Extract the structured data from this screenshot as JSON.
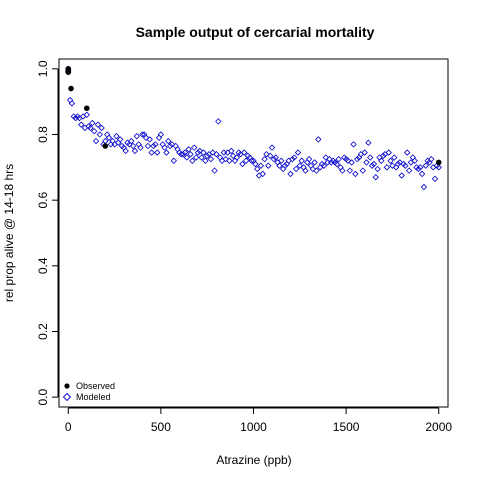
{
  "chart_data": {
    "type": "scatter",
    "title": "Sample output of cercarial mortality",
    "xlabel": "Atrazine (ppb)",
    "ylabel": "rel prop alive @ 14-18 hrs",
    "xlim": [
      -50,
      2050
    ],
    "ylim": [
      -0.03,
      1.03
    ],
    "xticks": [
      0,
      500,
      1000,
      1500,
      2000
    ],
    "xtick_labels": [
      "0",
      "500",
      "1000",
      "1500",
      "2000"
    ],
    "yticks": [
      0.0,
      0.2,
      0.4,
      0.6,
      0.8,
      1.0
    ],
    "ytick_labels": [
      "0.0",
      "0.2",
      "0.4",
      "0.6",
      "0.8",
      "1.0"
    ],
    "grid": false,
    "legend_position": "bottom-left",
    "series": [
      {
        "name": "Observed",
        "marker": "filled-circle",
        "color": "#000000",
        "points": [
          [
            0,
            1.0
          ],
          [
            0,
            0.995
          ],
          [
            0,
            0.99
          ],
          [
            15,
            0.94
          ],
          [
            100,
            0.88
          ],
          [
            200,
            0.765
          ],
          [
            2000,
            0.715
          ]
        ]
      },
      {
        "name": "Modeled",
        "marker": "open-diamond",
        "color": "#0000cc",
        "points": [
          [
            0,
            1.0
          ],
          [
            0,
            0.993
          ],
          [
            0,
            0.99
          ],
          [
            10,
            0.905
          ],
          [
            20,
            0.895
          ],
          [
            30,
            0.855
          ],
          [
            40,
            0.85
          ],
          [
            50,
            0.855
          ],
          [
            60,
            0.85
          ],
          [
            70,
            0.83
          ],
          [
            80,
            0.855
          ],
          [
            90,
            0.82
          ],
          [
            100,
            0.86
          ],
          [
            110,
            0.825
          ],
          [
            120,
            0.82
          ],
          [
            130,
            0.835
          ],
          [
            140,
            0.81
          ],
          [
            150,
            0.78
          ],
          [
            160,
            0.83
          ],
          [
            170,
            0.8
          ],
          [
            180,
            0.82
          ],
          [
            190,
            0.77
          ],
          [
            200,
            0.78
          ],
          [
            210,
            0.8
          ],
          [
            220,
            0.79
          ],
          [
            230,
            0.77
          ],
          [
            240,
            0.78
          ],
          [
            250,
            0.77
          ],
          [
            260,
            0.795
          ],
          [
            270,
            0.775
          ],
          [
            280,
            0.785
          ],
          [
            290,
            0.765
          ],
          [
            300,
            0.76
          ],
          [
            310,
            0.75
          ],
          [
            320,
            0.775
          ],
          [
            330,
            0.77
          ],
          [
            340,
            0.78
          ],
          [
            350,
            0.765
          ],
          [
            360,
            0.75
          ],
          [
            370,
            0.795
          ],
          [
            380,
            0.77
          ],
          [
            390,
            0.76
          ],
          [
            400,
            0.8
          ],
          [
            410,
            0.8
          ],
          [
            420,
            0.79
          ],
          [
            430,
            0.765
          ],
          [
            440,
            0.785
          ],
          [
            450,
            0.745
          ],
          [
            460,
            0.765
          ],
          [
            470,
            0.77
          ],
          [
            480,
            0.745
          ],
          [
            490,
            0.79
          ],
          [
            500,
            0.8
          ],
          [
            510,
            0.77
          ],
          [
            520,
            0.76
          ],
          [
            530,
            0.745
          ],
          [
            540,
            0.78
          ],
          [
            550,
            0.765
          ],
          [
            560,
            0.77
          ],
          [
            570,
            0.72
          ],
          [
            580,
            0.765
          ],
          [
            590,
            0.755
          ],
          [
            600,
            0.745
          ],
          [
            610,
            0.74
          ],
          [
            620,
            0.74
          ],
          [
            630,
            0.745
          ],
          [
            640,
            0.73
          ],
          [
            650,
            0.755
          ],
          [
            660,
            0.74
          ],
          [
            670,
            0.72
          ],
          [
            680,
            0.76
          ],
          [
            690,
            0.73
          ],
          [
            700,
            0.745
          ],
          [
            710,
            0.75
          ],
          [
            720,
            0.73
          ],
          [
            730,
            0.745
          ],
          [
            740,
            0.72
          ],
          [
            750,
            0.735
          ],
          [
            760,
            0.74
          ],
          [
            770,
            0.725
          ],
          [
            780,
            0.745
          ],
          [
            790,
            0.69
          ],
          [
            800,
            0.74
          ],
          [
            810,
            0.84
          ],
          [
            820,
            0.73
          ],
          [
            830,
            0.72
          ],
          [
            840,
            0.745
          ],
          [
            850,
            0.725
          ],
          [
            860,
            0.745
          ],
          [
            870,
            0.72
          ],
          [
            880,
            0.75
          ],
          [
            890,
            0.735
          ],
          [
            900,
            0.72
          ],
          [
            910,
            0.73
          ],
          [
            920,
            0.745
          ],
          [
            930,
            0.74
          ],
          [
            940,
            0.71
          ],
          [
            950,
            0.745
          ],
          [
            960,
            0.72
          ],
          [
            970,
            0.735
          ],
          [
            980,
            0.73
          ],
          [
            990,
            0.72
          ],
          [
            1000,
            0.72
          ],
          [
            1010,
            0.71
          ],
          [
            1020,
            0.695
          ],
          [
            1030,
            0.675
          ],
          [
            1040,
            0.705
          ],
          [
            1050,
            0.68
          ],
          [
            1060,
            0.725
          ],
          [
            1070,
            0.74
          ],
          [
            1080,
            0.705
          ],
          [
            1090,
            0.735
          ],
          [
            1100,
            0.76
          ],
          [
            1110,
            0.725
          ],
          [
            1120,
            0.73
          ],
          [
            1130,
            0.715
          ],
          [
            1140,
            0.705
          ],
          [
            1150,
            0.72
          ],
          [
            1160,
            0.695
          ],
          [
            1170,
            0.705
          ],
          [
            1180,
            0.71
          ],
          [
            1190,
            0.72
          ],
          [
            1200,
            0.68
          ],
          [
            1210,
            0.725
          ],
          [
            1220,
            0.73
          ],
          [
            1230,
            0.695
          ],
          [
            1240,
            0.745
          ],
          [
            1250,
            0.705
          ],
          [
            1260,
            0.72
          ],
          [
            1270,
            0.7
          ],
          [
            1280,
            0.69
          ],
          [
            1290,
            0.715
          ],
          [
            1300,
            0.725
          ],
          [
            1310,
            0.705
          ],
          [
            1320,
            0.695
          ],
          [
            1330,
            0.715
          ],
          [
            1340,
            0.69
          ],
          [
            1350,
            0.785
          ],
          [
            1360,
            0.7
          ],
          [
            1370,
            0.71
          ],
          [
            1380,
            0.705
          ],
          [
            1390,
            0.73
          ],
          [
            1400,
            0.715
          ],
          [
            1410,
            0.725
          ],
          [
            1420,
            0.715
          ],
          [
            1430,
            0.72
          ],
          [
            1440,
            0.715
          ],
          [
            1450,
            0.71
          ],
          [
            1460,
            0.725
          ],
          [
            1470,
            0.7
          ],
          [
            1480,
            0.69
          ],
          [
            1490,
            0.73
          ],
          [
            1500,
            0.725
          ],
          [
            1510,
            0.72
          ],
          [
            1520,
            0.69
          ],
          [
            1530,
            0.715
          ],
          [
            1540,
            0.77
          ],
          [
            1550,
            0.68
          ],
          [
            1560,
            0.725
          ],
          [
            1570,
            0.73
          ],
          [
            1580,
            0.74
          ],
          [
            1590,
            0.69
          ],
          [
            1600,
            0.745
          ],
          [
            1610,
            0.715
          ],
          [
            1620,
            0.775
          ],
          [
            1630,
            0.73
          ],
          [
            1640,
            0.705
          ],
          [
            1650,
            0.71
          ],
          [
            1660,
            0.67
          ],
          [
            1670,
            0.695
          ],
          [
            1680,
            0.73
          ],
          [
            1690,
            0.72
          ],
          [
            1700,
            0.735
          ],
          [
            1710,
            0.74
          ],
          [
            1720,
            0.7
          ],
          [
            1730,
            0.745
          ],
          [
            1740,
            0.72
          ],
          [
            1750,
            0.705
          ],
          [
            1760,
            0.73
          ],
          [
            1770,
            0.7
          ],
          [
            1780,
            0.71
          ],
          [
            1790,
            0.715
          ],
          [
            1800,
            0.675
          ],
          [
            1810,
            0.71
          ],
          [
            1820,
            0.705
          ],
          [
            1830,
            0.745
          ],
          [
            1840,
            0.69
          ],
          [
            1850,
            0.715
          ],
          [
            1860,
            0.73
          ],
          [
            1870,
            0.72
          ],
          [
            1880,
            0.7
          ],
          [
            1890,
            0.695
          ],
          [
            1900,
            0.7
          ],
          [
            1910,
            0.68
          ],
          [
            1920,
            0.64
          ],
          [
            1930,
            0.705
          ],
          [
            1940,
            0.72
          ],
          [
            1950,
            0.715
          ],
          [
            1960,
            0.725
          ],
          [
            1970,
            0.7
          ],
          [
            1980,
            0.665
          ],
          [
            1990,
            0.705
          ],
          [
            2000,
            0.7
          ]
        ]
      }
    ]
  }
}
